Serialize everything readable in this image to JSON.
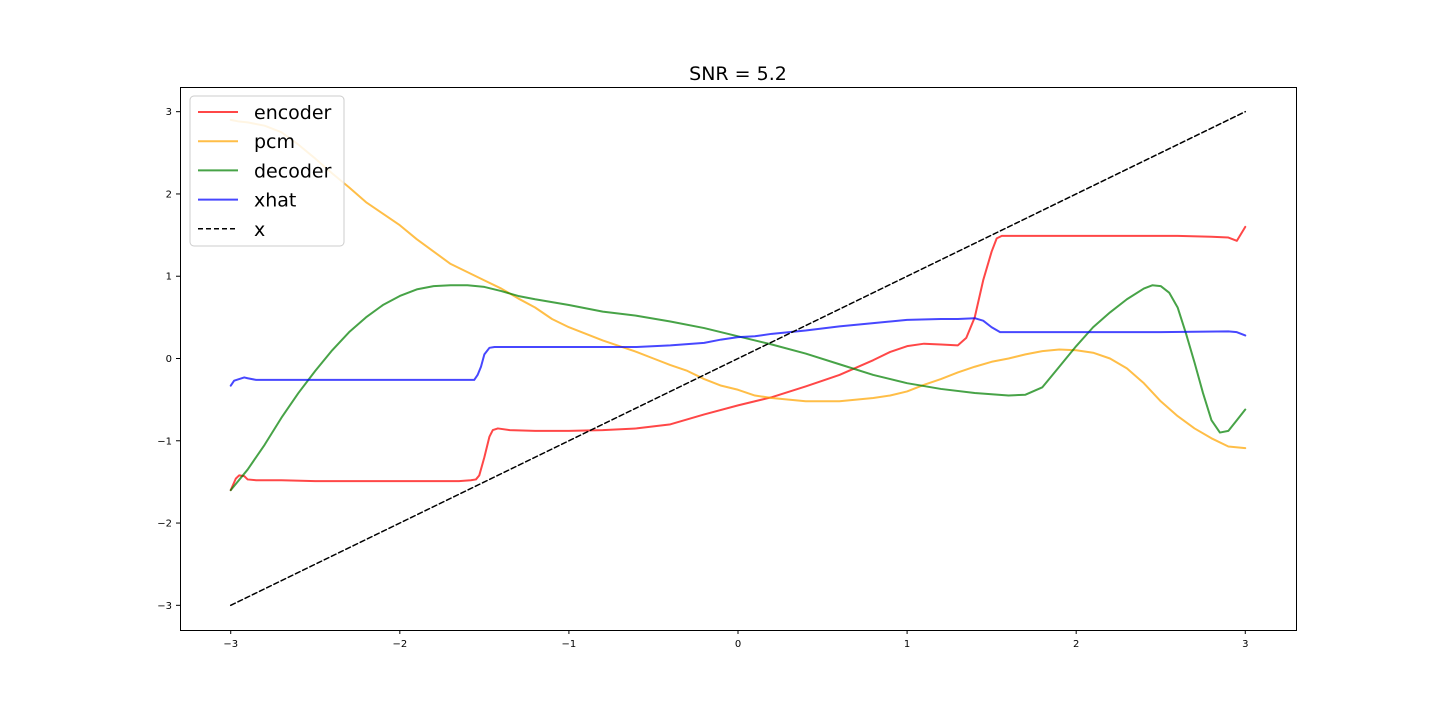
{
  "chart_data": {
    "type": "line",
    "title": "SNR = 5.2",
    "xlabel": "",
    "ylabel": "",
    "xlim": [
      -3.3,
      3.3
    ],
    "ylim": [
      -3.3,
      3.3
    ],
    "xticks": [
      -3,
      -2,
      -1,
      0,
      1,
      2,
      3
    ],
    "yticks": [
      -3,
      -2,
      -1,
      0,
      1,
      2,
      3
    ],
    "xtick_labels": [
      "−3",
      "−2",
      "−1",
      "0",
      "1",
      "2",
      "3"
    ],
    "ytick_labels": [
      "−3",
      "−2",
      "−1",
      "0",
      "1",
      "2",
      "3"
    ],
    "grid": false,
    "legend_position": "top-left",
    "series": [
      {
        "name": "encoder",
        "color": "#ff0000",
        "style": "solid",
        "x": [
          -3.0,
          -2.97,
          -2.95,
          -2.92,
          -2.9,
          -2.85,
          -2.7,
          -2.5,
          -2.2,
          -2.0,
          -1.8,
          -1.65,
          -1.58,
          -1.55,
          -1.53,
          -1.5,
          -1.47,
          -1.45,
          -1.42,
          -1.35,
          -1.2,
          -1.0,
          -0.8,
          -0.6,
          -0.4,
          -0.2,
          0.0,
          0.2,
          0.4,
          0.6,
          0.8,
          0.9,
          1.0,
          1.1,
          1.2,
          1.3,
          1.35,
          1.4,
          1.45,
          1.5,
          1.53,
          1.56,
          1.6,
          1.8,
          2.0,
          2.2,
          2.4,
          2.6,
          2.8,
          2.9,
          2.95,
          3.0
        ],
        "y": [
          -1.6,
          -1.46,
          -1.42,
          -1.43,
          -1.47,
          -1.48,
          -1.48,
          -1.49,
          -1.49,
          -1.49,
          -1.49,
          -1.49,
          -1.48,
          -1.47,
          -1.42,
          -1.2,
          -0.95,
          -0.87,
          -0.85,
          -0.87,
          -0.88,
          -0.88,
          -0.87,
          -0.85,
          -0.8,
          -0.68,
          -0.57,
          -0.47,
          -0.34,
          -0.2,
          -0.02,
          0.08,
          0.15,
          0.18,
          0.17,
          0.16,
          0.25,
          0.5,
          0.95,
          1.3,
          1.46,
          1.49,
          1.49,
          1.49,
          1.49,
          1.49,
          1.49,
          1.49,
          1.48,
          1.47,
          1.43,
          1.6
        ]
      },
      {
        "name": "pcm",
        "color": "#ffa500",
        "style": "solid",
        "x": [
          -3.0,
          -2.95,
          -2.9,
          -2.8,
          -2.7,
          -2.6,
          -2.5,
          -2.4,
          -2.3,
          -2.2,
          -2.1,
          -2.0,
          -1.9,
          -1.8,
          -1.7,
          -1.6,
          -1.5,
          -1.4,
          -1.3,
          -1.2,
          -1.1,
          -1.0,
          -0.9,
          -0.8,
          -0.7,
          -0.6,
          -0.5,
          -0.4,
          -0.3,
          -0.2,
          -0.1,
          0.0,
          0.1,
          0.2,
          0.3,
          0.4,
          0.5,
          0.6,
          0.7,
          0.8,
          0.9,
          1.0,
          1.1,
          1.2,
          1.3,
          1.4,
          1.5,
          1.6,
          1.7,
          1.8,
          1.9,
          2.0,
          2.1,
          2.2,
          2.3,
          2.4,
          2.5,
          2.6,
          2.7,
          2.8,
          2.9,
          3.0
        ],
        "y": [
          2.9,
          2.88,
          2.87,
          2.83,
          2.75,
          2.6,
          2.43,
          2.25,
          2.08,
          1.9,
          1.76,
          1.62,
          1.45,
          1.3,
          1.15,
          1.05,
          0.95,
          0.85,
          0.73,
          0.62,
          0.48,
          0.38,
          0.3,
          0.22,
          0.15,
          0.08,
          0.0,
          -0.08,
          -0.15,
          -0.25,
          -0.33,
          -0.38,
          -0.45,
          -0.48,
          -0.5,
          -0.52,
          -0.52,
          -0.52,
          -0.5,
          -0.48,
          -0.45,
          -0.4,
          -0.32,
          -0.25,
          -0.17,
          -0.1,
          -0.04,
          0.0,
          0.05,
          0.09,
          0.11,
          0.1,
          0.07,
          0.0,
          -0.12,
          -0.3,
          -0.52,
          -0.7,
          -0.85,
          -0.97,
          -1.07,
          -1.09
        ]
      },
      {
        "name": "decoder",
        "color": "#008000",
        "style": "solid",
        "x": [
          -3.0,
          -2.9,
          -2.8,
          -2.7,
          -2.6,
          -2.5,
          -2.4,
          -2.3,
          -2.2,
          -2.1,
          -2.0,
          -1.9,
          -1.8,
          -1.7,
          -1.6,
          -1.5,
          -1.4,
          -1.3,
          -1.2,
          -1.0,
          -0.8,
          -0.6,
          -0.4,
          -0.2,
          0.0,
          0.2,
          0.4,
          0.6,
          0.8,
          1.0,
          1.2,
          1.4,
          1.6,
          1.7,
          1.8,
          1.9,
          2.0,
          2.1,
          2.2,
          2.3,
          2.4,
          2.45,
          2.5,
          2.55,
          2.6,
          2.65,
          2.7,
          2.75,
          2.8,
          2.85,
          2.9,
          2.95,
          3.0
        ],
        "y": [
          -1.6,
          -1.35,
          -1.05,
          -0.72,
          -0.42,
          -0.15,
          0.1,
          0.32,
          0.5,
          0.65,
          0.76,
          0.84,
          0.88,
          0.89,
          0.89,
          0.87,
          0.82,
          0.76,
          0.72,
          0.65,
          0.57,
          0.52,
          0.45,
          0.37,
          0.27,
          0.17,
          0.06,
          -0.07,
          -0.2,
          -0.3,
          -0.37,
          -0.42,
          -0.45,
          -0.44,
          -0.35,
          -0.1,
          0.15,
          0.38,
          0.56,
          0.72,
          0.85,
          0.89,
          0.88,
          0.8,
          0.62,
          0.3,
          -0.05,
          -0.42,
          -0.75,
          -0.9,
          -0.88,
          -0.75,
          -0.62
        ]
      },
      {
        "name": "xhat",
        "color": "#0000ff",
        "style": "solid",
        "x": [
          -3.0,
          -2.98,
          -2.95,
          -2.92,
          -2.9,
          -2.85,
          -2.8,
          -2.5,
          -2.0,
          -1.6,
          -1.56,
          -1.54,
          -1.52,
          -1.5,
          -1.47,
          -1.44,
          -1.4,
          -1.2,
          -1.0,
          -0.8,
          -0.6,
          -0.4,
          -0.2,
          -0.1,
          0.0,
          0.1,
          0.2,
          0.4,
          0.6,
          0.8,
          1.0,
          1.2,
          1.3,
          1.4,
          1.45,
          1.5,
          1.55,
          1.6,
          2.0,
          2.5,
          2.9,
          2.95,
          3.0
        ],
        "y": [
          -0.33,
          -0.27,
          -0.25,
          -0.23,
          -0.24,
          -0.26,
          -0.26,
          -0.26,
          -0.26,
          -0.26,
          -0.26,
          -0.2,
          -0.1,
          0.05,
          0.13,
          0.14,
          0.14,
          0.14,
          0.14,
          0.14,
          0.14,
          0.16,
          0.19,
          0.23,
          0.26,
          0.27,
          0.3,
          0.34,
          0.39,
          0.43,
          0.47,
          0.48,
          0.48,
          0.49,
          0.46,
          0.38,
          0.32,
          0.32,
          0.32,
          0.32,
          0.33,
          0.32,
          0.28
        ]
      },
      {
        "name": "x",
        "color": "#000000",
        "style": "dashed",
        "x": [
          -3.0,
          3.0
        ],
        "y": [
          -3.0,
          3.0
        ]
      }
    ]
  }
}
